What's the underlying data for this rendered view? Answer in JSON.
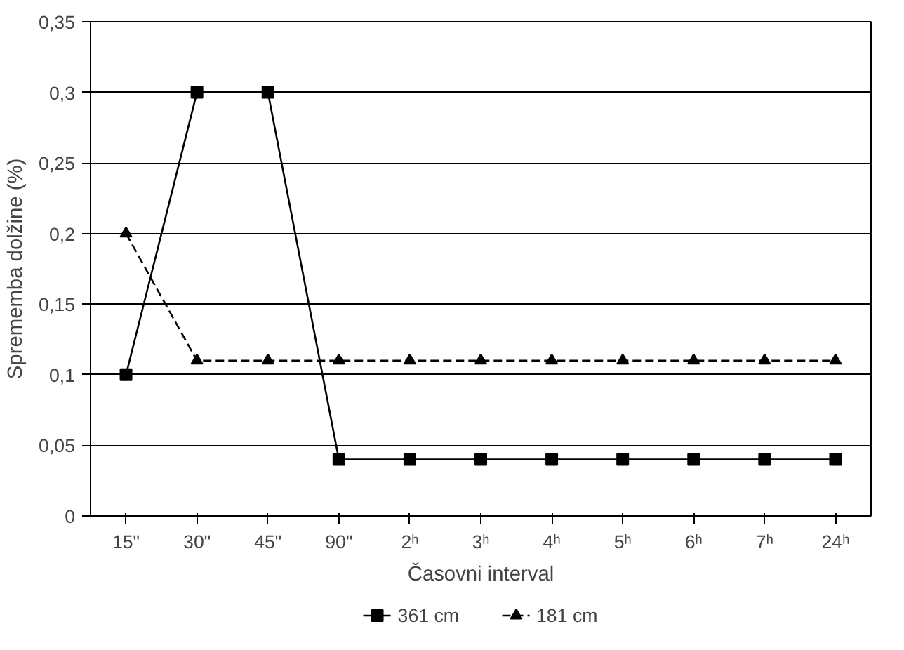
{
  "chart_data": {
    "type": "line",
    "xlabel": "Časovni interval",
    "ylabel": "Sprememba dolžine (%)",
    "categories": [
      "15\"",
      "30\"",
      "45\"",
      "90\"",
      "2ʰ",
      "3ʰ",
      "4ʰ",
      "5ʰ",
      "6ʰ",
      "7ʰ",
      "24ʰ"
    ],
    "series": [
      {
        "name": "361 cm",
        "color": "#000000",
        "marker": "square",
        "line_style": "solid",
        "values": [
          0.1,
          0.3,
          0.3,
          0.04,
          0.04,
          0.04,
          0.04,
          0.04,
          0.04,
          0.04,
          0.04
        ]
      },
      {
        "name": "181 cm",
        "color": "#000000",
        "marker": "triangle",
        "line_style": "dashed",
        "values": [
          0.2,
          0.11,
          0.11,
          0.11,
          0.11,
          0.11,
          0.11,
          0.11,
          0.11,
          0.11,
          0.11
        ]
      }
    ],
    "ylim": [
      0,
      0.35
    ],
    "yticks": [
      0,
      {
        "value": 0.05,
        "label": "0,05"
      },
      {
        "value": 0.1,
        "label": "0,1"
      },
      {
        "value": 0.15,
        "label": "0,15"
      },
      {
        "value": 0.2,
        "label": "0,2"
      },
      {
        "value": 0.25,
        "label": "0,25"
      },
      {
        "value": 0.3,
        "label": "0,3"
      },
      {
        "value": 0.35,
        "label": "0,35"
      }
    ],
    "grid": "y",
    "legend": "bottom"
  }
}
